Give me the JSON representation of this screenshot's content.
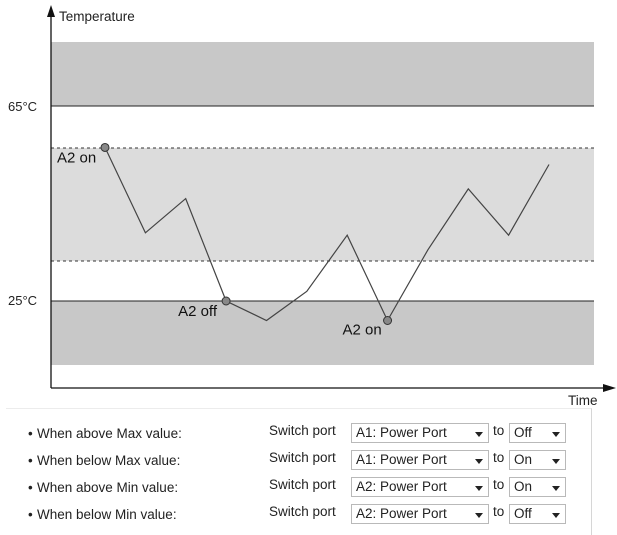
{
  "chart": {
    "y_axis_label": "Temperature",
    "x_axis_label": "Time",
    "max_label": "65°C",
    "min_label": "25°C",
    "annotations": [
      {
        "text": "A2 on",
        "point_index": 0
      },
      {
        "text": "A2 off",
        "point_index": 3
      },
      {
        "text": "A2 on",
        "point_index": 7
      }
    ]
  },
  "chart_data": {
    "type": "line",
    "title": "",
    "xlabel": "Time",
    "ylabel": "Temperature",
    "y_reference_lines": [
      65,
      25
    ],
    "series": [
      {
        "values": [
          56.5,
          39,
          46,
          25,
          21,
          27,
          38.5,
          21,
          35.5,
          48,
          38.5,
          53
        ]
      }
    ]
  },
  "rules": {
    "switch_text": "Switch port",
    "to_text": "to",
    "rows": [
      {
        "label": "When above Max value:",
        "port": "A1: Power Port",
        "state": "Off"
      },
      {
        "label": "When below Max value:",
        "port": "A1: Power Port",
        "state": "On"
      },
      {
        "label": "When above Min value:",
        "port": "A2: Power Port",
        "state": "On"
      },
      {
        "label": "When below Min value:",
        "port": "A2: Power Port",
        "state": "Off"
      }
    ]
  },
  "colors": {
    "dark_band": "#c8c8c8",
    "light_band": "#dcdcdc",
    "line": "#444444",
    "marker": "#888888"
  }
}
